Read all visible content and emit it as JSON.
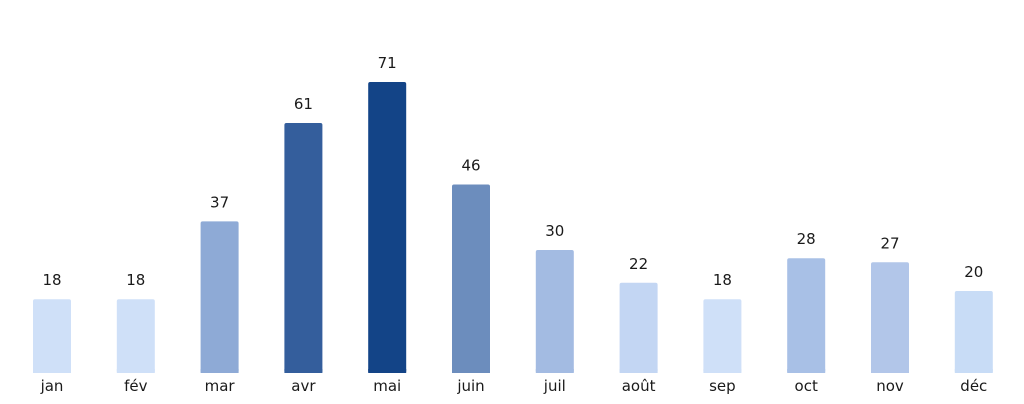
{
  "chart_data": {
    "type": "bar",
    "title": "",
    "xlabel": "",
    "ylabel": "",
    "categories": [
      "jan",
      "fév",
      "mar",
      "avr",
      "mai",
      "juin",
      "juil",
      "août",
      "sep",
      "oct",
      "nov",
      "déc"
    ],
    "values": [
      18,
      18,
      37,
      61,
      71,
      46,
      30,
      22,
      18,
      28,
      27,
      20
    ],
    "colors": [
      "#cfe0f8",
      "#cfe0f8",
      "#8eaad6",
      "#345e9c",
      "#134487",
      "#6c8dbd",
      "#a3bbe2",
      "#c3d6f3",
      "#cfe0f8",
      "#a8c0e6",
      "#b2c6e9",
      "#c8dcf6"
    ],
    "ylim": [
      0,
      71
    ],
    "grid": false,
    "legend": "none",
    "value_labels": true
  }
}
